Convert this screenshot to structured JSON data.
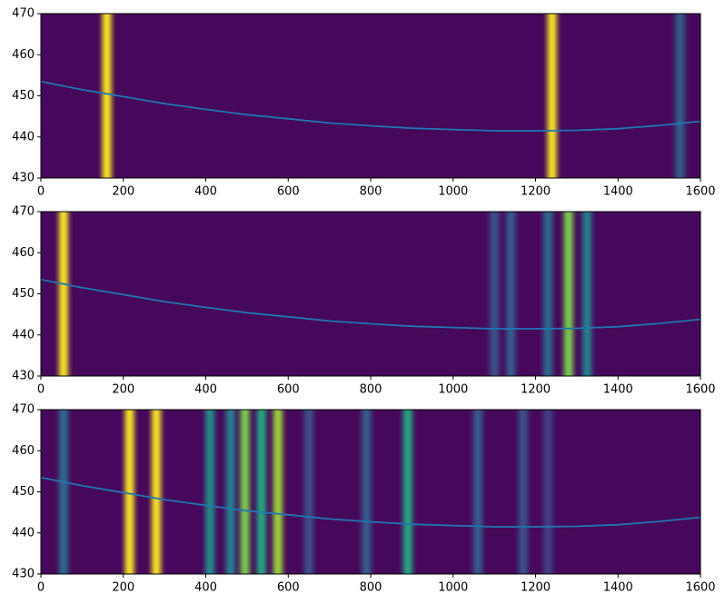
{
  "chart_data": [
    {
      "type": "spectrum",
      "colormap": "viridis",
      "xlim": [
        0,
        1600
      ],
      "ylim": [
        430,
        470
      ],
      "xticks": [
        0,
        200,
        400,
        600,
        800,
        1000,
        1200,
        1400,
        1600
      ],
      "yticks": [
        430,
        440,
        450,
        460,
        470
      ],
      "bands_x": [
        160,
        1240,
        1550
      ],
      "bands_intensity": [
        1,
        1,
        0.3
      ],
      "series": [
        {
          "color": "#1f77b4",
          "x": [
            0,
            100,
            200,
            300,
            400,
            500,
            600,
            700,
            800,
            900,
            1000,
            1100,
            1200,
            1300,
            1400,
            1500,
            1600
          ],
          "values": [
            453.5,
            451.5,
            449.8,
            448.1,
            446.7,
            445.4,
            444.4,
            443.4,
            442.7,
            442.1,
            441.8,
            441.5,
            441.5,
            441.6,
            442.0,
            442.8,
            443.8
          ]
        }
      ]
    },
    {
      "type": "spectrum",
      "colormap": "viridis",
      "xlim": [
        0,
        1600
      ],
      "ylim": [
        430,
        470
      ],
      "xticks": [
        0,
        200,
        400,
        600,
        800,
        1000,
        1200,
        1400,
        1600
      ],
      "yticks": [
        430,
        440,
        450,
        460,
        470
      ],
      "bands_x": [
        55,
        1100,
        1140,
        1230,
        1280,
        1325
      ],
      "bands_intensity": [
        1,
        0.25,
        0.3,
        0.35,
        0.8,
        0.45
      ],
      "series": [
        {
          "color": "#1f77b4",
          "x": [
            0,
            100,
            200,
            300,
            400,
            500,
            600,
            700,
            800,
            900,
            1000,
            1100,
            1200,
            1300,
            1400,
            1500,
            1600
          ],
          "values": [
            453.5,
            451.5,
            449.8,
            448.1,
            446.7,
            445.4,
            444.4,
            443.4,
            442.7,
            442.1,
            441.8,
            441.5,
            441.5,
            441.6,
            442.0,
            442.8,
            443.8
          ]
        }
      ]
    },
    {
      "type": "spectrum",
      "colormap": "viridis",
      "xlim": [
        0,
        1600
      ],
      "ylim": [
        430,
        470
      ],
      "xticks": [
        0,
        200,
        400,
        600,
        800,
        1000,
        1200,
        1400,
        1600
      ],
      "yticks": [
        430,
        440,
        450,
        460,
        470
      ],
      "bands_x": [
        55,
        215,
        280,
        410,
        460,
        495,
        535,
        575,
        650,
        790,
        890,
        1060,
        1170,
        1230
      ],
      "bands_intensity": [
        0.35,
        1,
        1,
        0.5,
        0.45,
        0.8,
        0.6,
        0.85,
        0.25,
        0.3,
        0.6,
        0.3,
        0.25,
        0.2
      ],
      "series": [
        {
          "color": "#1f77b4",
          "x": [
            0,
            100,
            200,
            300,
            400,
            500,
            600,
            700,
            800,
            900,
            1000,
            1100,
            1200,
            1300,
            1400,
            1500,
            1600
          ],
          "values": [
            453.5,
            451.5,
            449.8,
            448.1,
            446.7,
            445.4,
            444.4,
            443.4,
            442.7,
            442.1,
            441.8,
            441.5,
            441.5,
            441.6,
            442.0,
            442.8,
            443.8
          ]
        }
      ]
    }
  ]
}
